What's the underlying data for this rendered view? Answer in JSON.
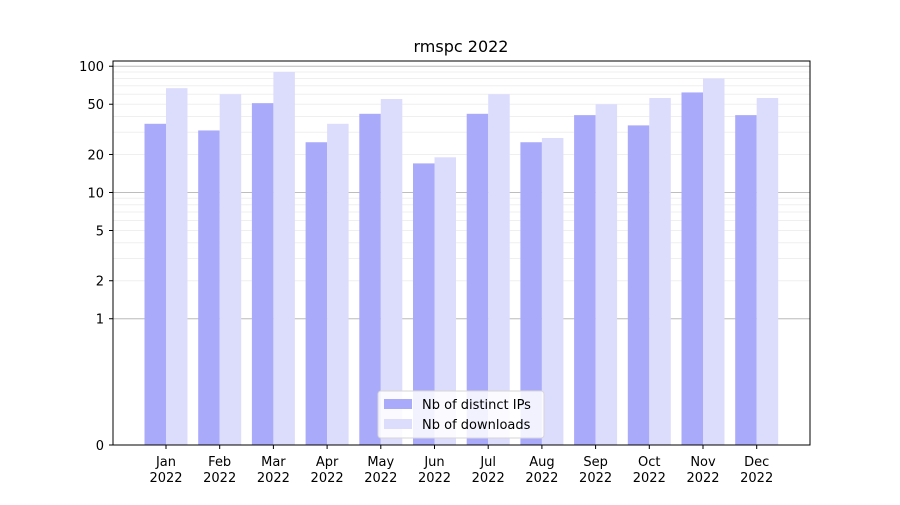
{
  "chart_data": {
    "type": "bar",
    "title": "rmspc 2022",
    "xlabel": "",
    "ylabel": "",
    "yscale": "symlog",
    "ylim": [
      0,
      110
    ],
    "yticks": [
      0,
      1,
      2,
      5,
      10,
      20,
      50,
      100
    ],
    "grid": true,
    "legend_position": "bottom-center",
    "categories": [
      [
        "Jan",
        "2022"
      ],
      [
        "Feb",
        "2022"
      ],
      [
        "Mar",
        "2022"
      ],
      [
        "Apr",
        "2022"
      ],
      [
        "May",
        "2022"
      ],
      [
        "Jun",
        "2022"
      ],
      [
        "Jul",
        "2022"
      ],
      [
        "Aug",
        "2022"
      ],
      [
        "Sep",
        "2022"
      ],
      [
        "Oct",
        "2022"
      ],
      [
        "Nov",
        "2022"
      ],
      [
        "Dec",
        "2022"
      ]
    ],
    "series": [
      {
        "name": "Nb of distinct IPs",
        "color": "#aaaafb",
        "values": [
          35,
          31,
          51,
          25,
          42,
          17,
          42,
          25,
          41,
          34,
          62,
          41
        ]
      },
      {
        "name": "Nb of downloads",
        "color": "#dcdcfd",
        "values": [
          67,
          60,
          90,
          35,
          55,
          19,
          60,
          27,
          50,
          56,
          80,
          56
        ]
      }
    ]
  }
}
